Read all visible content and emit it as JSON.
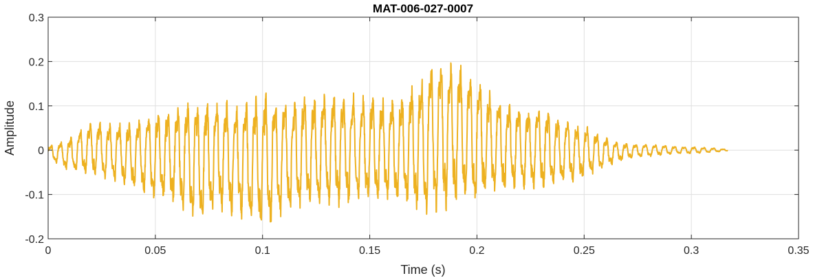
{
  "chart_data": {
    "type": "line",
    "title": "MAT-006-027-0007",
    "xlabel": "Time (s)",
    "ylabel": "Amplitude",
    "xlim": [
      0,
      0.35
    ],
    "ylim": [
      -0.2,
      0.3
    ],
    "xticks": [
      "0",
      "0.05",
      "0.1",
      "0.15",
      "0.2",
      "0.25",
      "0.3",
      "0.35"
    ],
    "yticks": [
      "-0.2",
      "-0.1",
      "0",
      "0.1",
      "0.2",
      "0.3"
    ],
    "grid": true,
    "series": [
      {
        "color": "#edb120",
        "envelope": {
          "x": [
            0,
            0.01,
            0.02,
            0.03,
            0.04,
            0.05,
            0.06,
            0.07,
            0.08,
            0.09,
            0.1,
            0.11,
            0.12,
            0.13,
            0.14,
            0.15,
            0.16,
            0.17,
            0.18,
            0.19,
            0.2,
            0.21,
            0.22,
            0.23,
            0.24,
            0.25,
            0.26,
            0.27,
            0.28,
            0.29,
            0.3,
            0.31,
            0.317
          ],
          "upper": [
            0.01,
            0.03,
            0.07,
            0.06,
            0.07,
            0.09,
            0.1,
            0.12,
            0.12,
            0.11,
            0.14,
            0.12,
            0.13,
            0.13,
            0.13,
            0.13,
            0.12,
            0.15,
            0.21,
            0.21,
            0.17,
            0.12,
            0.1,
            0.1,
            0.07,
            0.06,
            0.03,
            0.015,
            0.015,
            0.01,
            0.008,
            0.005,
            0.002
          ],
          "lower": [
            -0.02,
            -0.05,
            -0.06,
            -0.07,
            -0.09,
            -0.11,
            -0.13,
            -0.17,
            -0.14,
            -0.16,
            -0.19,
            -0.15,
            -0.13,
            -0.13,
            -0.13,
            -0.12,
            -0.12,
            -0.14,
            -0.15,
            -0.13,
            -0.12,
            -0.1,
            -0.09,
            -0.09,
            -0.08,
            -0.07,
            -0.04,
            -0.02,
            -0.015,
            -0.01,
            -0.008,
            -0.005,
            -0.002
          ]
        },
        "dominant_frequency_hz": 220
      }
    ]
  }
}
